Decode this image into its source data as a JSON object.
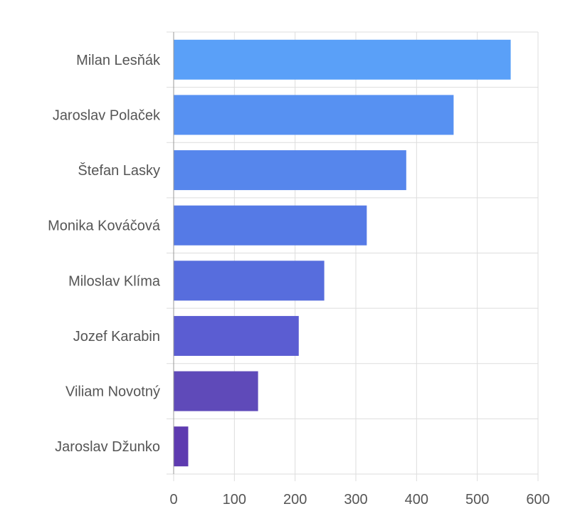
{
  "chart_data": {
    "type": "bar",
    "orientation": "horizontal",
    "categories": [
      "Milan Lesňák",
      "Jaroslav Polaček",
      "Štefan Lasky",
      "Monika Kováčová",
      "Miloslav Klíma",
      "Jozef Karabin",
      "Viliam Novotný",
      "Jaroslav Džunko"
    ],
    "values": [
      555,
      461,
      383,
      318,
      248,
      206,
      139,
      24
    ],
    "xlim": [
      0,
      600
    ],
    "xticks": [
      "0",
      "100",
      "200",
      "300",
      "400",
      "500",
      "600"
    ],
    "grid": true,
    "colors": [
      "#5aa0f8",
      "#5791f2",
      "#5686ec",
      "#557ae6",
      "#576ddd",
      "#5b5dd2",
      "#5f4ab9",
      "#5e3bb0"
    ]
  }
}
